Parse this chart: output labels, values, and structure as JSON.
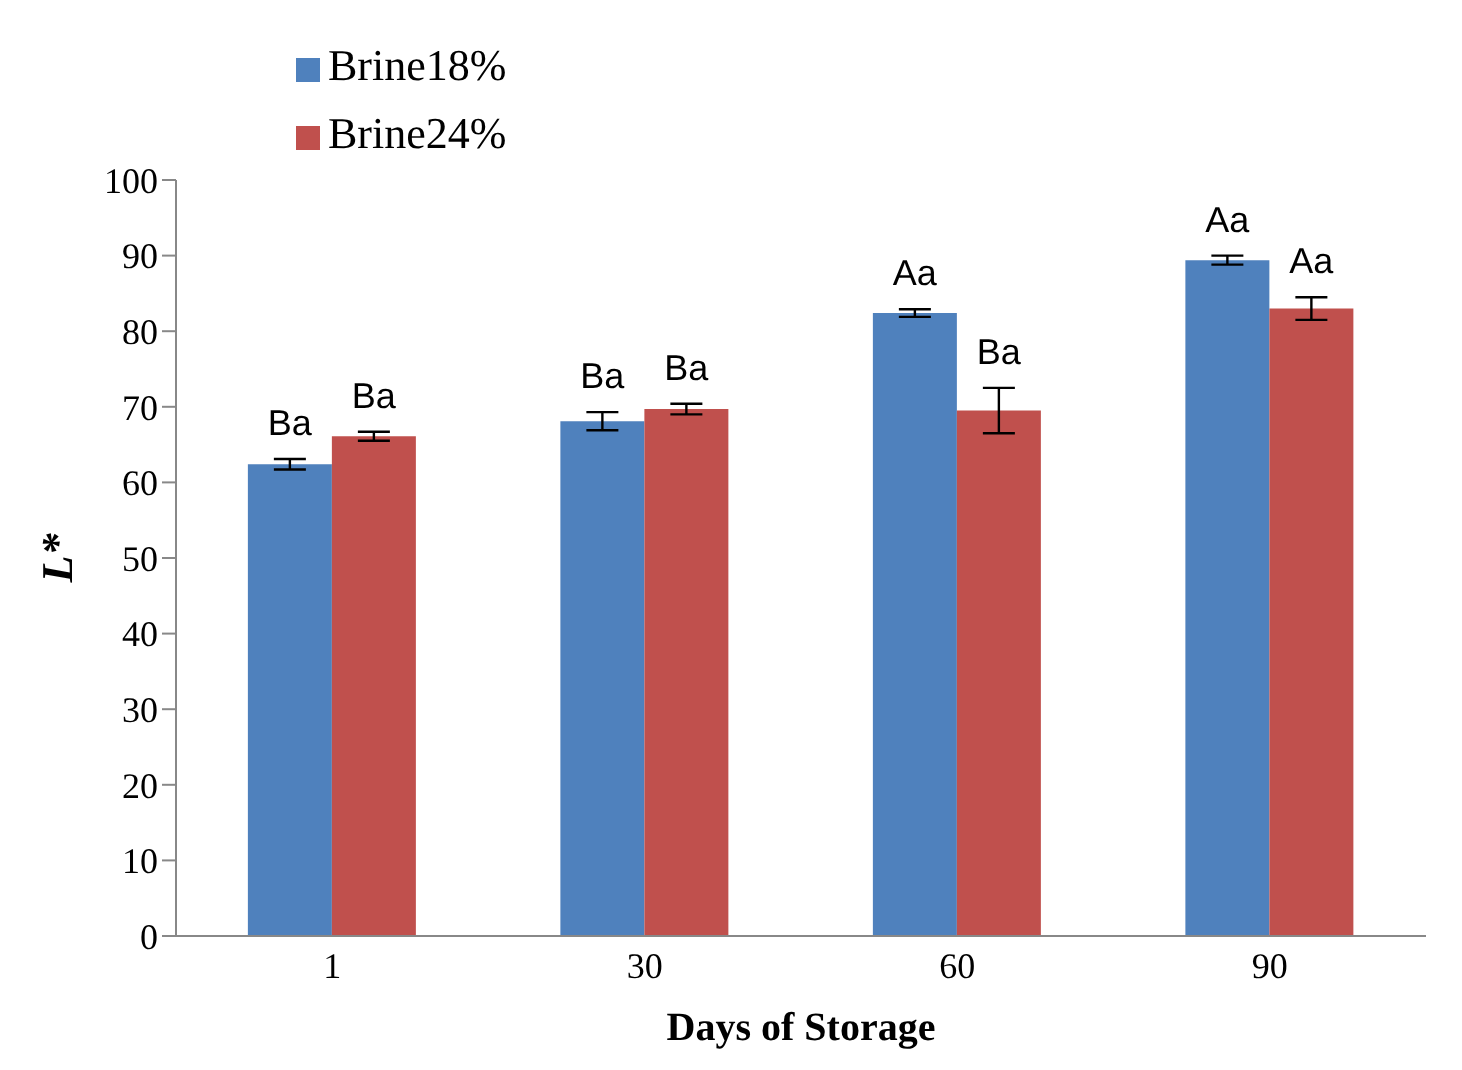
{
  "chart_data": {
    "type": "bar",
    "xlabel": "Days of Storage",
    "ylabel": "L*",
    "categories": [
      "1",
      "30",
      "60",
      "90"
    ],
    "series": [
      {
        "name": "Brine18%",
        "color": "#4f81bd",
        "values": [
          62.4,
          68.1,
          82.4,
          89.4
        ],
        "errors": [
          0.7,
          1.2,
          0.5,
          0.6
        ],
        "value_labels": [
          "Ba",
          "Ba",
          "Aa",
          "Aa"
        ]
      },
      {
        "name": "Brine24%",
        "color": "#c0504d",
        "values": [
          66.1,
          69.7,
          69.5,
          83.0
        ],
        "errors": [
          0.6,
          0.7,
          3.0,
          1.5
        ],
        "value_labels": [
          "Ba",
          "Ba",
          "Ba",
          "Aa"
        ]
      }
    ],
    "ylim": [
      0,
      100
    ],
    "yticks": [
      0,
      10,
      20,
      30,
      40,
      50,
      60,
      70,
      80,
      90,
      100
    ],
    "grid": false,
    "legend": "top left"
  }
}
